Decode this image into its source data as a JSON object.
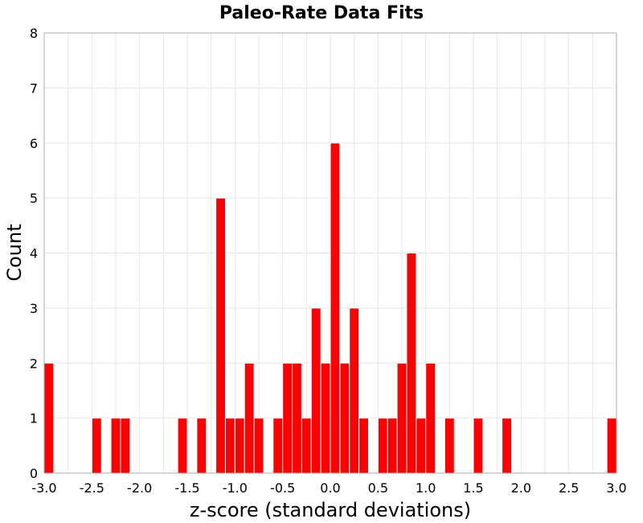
{
  "chart_data": {
    "type": "bar",
    "title": "Paleo-Rate Data Fits",
    "xlabel": "z-score (standard deviations)",
    "ylabel": "Count",
    "xlim": [
      -3.0,
      3.0
    ],
    "ylim": [
      0,
      8
    ],
    "bin_width": 0.1,
    "grid": true,
    "bar_color": "#ff0000",
    "x_ticks": [
      "-3.0",
      "-2.5",
      "-2.0",
      "-1.5",
      "-1.0",
      "-0.5",
      "0.0",
      "0.5",
      "1.0",
      "1.5",
      "2.0",
      "2.5",
      "3.0"
    ],
    "y_ticks": [
      "0",
      "1",
      "2",
      "3",
      "4",
      "5",
      "6",
      "7",
      "8"
    ],
    "bins": [
      {
        "x": -2.95,
        "count": 2
      },
      {
        "x": -2.45,
        "count": 1
      },
      {
        "x": -2.25,
        "count": 1
      },
      {
        "x": -2.15,
        "count": 1
      },
      {
        "x": -1.55,
        "count": 1
      },
      {
        "x": -1.35,
        "count": 1
      },
      {
        "x": -1.15,
        "count": 5
      },
      {
        "x": -1.05,
        "count": 1
      },
      {
        "x": -0.95,
        "count": 1
      },
      {
        "x": -0.85,
        "count": 2
      },
      {
        "x": -0.75,
        "count": 1
      },
      {
        "x": -0.55,
        "count": 1
      },
      {
        "x": -0.45,
        "count": 2
      },
      {
        "x": -0.35,
        "count": 2
      },
      {
        "x": -0.25,
        "count": 1
      },
      {
        "x": -0.15,
        "count": 3
      },
      {
        "x": -0.05,
        "count": 2
      },
      {
        "x": 0.05,
        "count": 6
      },
      {
        "x": 0.15,
        "count": 2
      },
      {
        "x": 0.25,
        "count": 3
      },
      {
        "x": 0.35,
        "count": 1
      },
      {
        "x": 0.55,
        "count": 1
      },
      {
        "x": 0.65,
        "count": 1
      },
      {
        "x": 0.75,
        "count": 2
      },
      {
        "x": 0.85,
        "count": 4
      },
      {
        "x": 0.95,
        "count": 1
      },
      {
        "x": 1.05,
        "count": 2
      },
      {
        "x": 1.25,
        "count": 1
      },
      {
        "x": 1.55,
        "count": 1
      },
      {
        "x": 1.85,
        "count": 1
      },
      {
        "x": 2.95,
        "count": 1
      }
    ]
  }
}
